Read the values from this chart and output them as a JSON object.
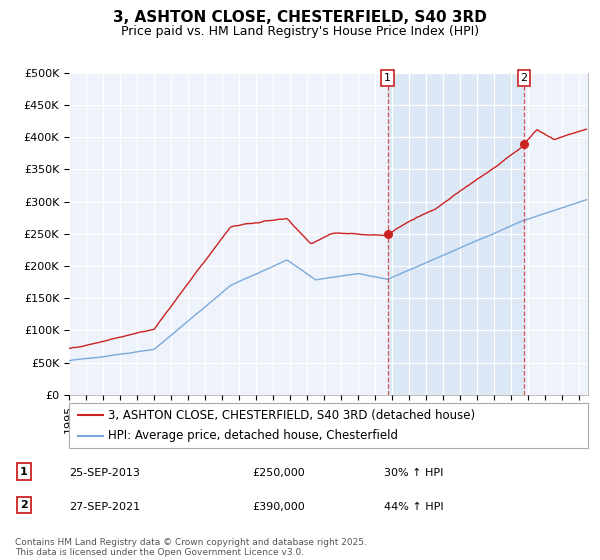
{
  "title": "3, ASHTON CLOSE, CHESTERFIELD, S40 3RD",
  "subtitle": "Price paid vs. HM Land Registry's House Price Index (HPI)",
  "ylim": [
    0,
    500000
  ],
  "yticks": [
    0,
    50000,
    100000,
    150000,
    200000,
    250000,
    300000,
    350000,
    400000,
    450000,
    500000
  ],
  "ytick_labels": [
    "£0",
    "£50K",
    "£100K",
    "£150K",
    "£200K",
    "£250K",
    "£300K",
    "£350K",
    "£400K",
    "£450K",
    "£500K"
  ],
  "xlim_start": 1995.0,
  "xlim_end": 2025.5,
  "background_color": "#ffffff",
  "plot_bg_color": "#eef2fa",
  "grid_color": "#ffffff",
  "red_color": "#cc2222",
  "blue_color": "#7aaadd",
  "span_color": "#dce8f5",
  "marker1_x": 2013.73,
  "marker1_y": 250000,
  "marker2_x": 2021.74,
  "marker2_y": 390000,
  "legend_line1": "3, ASHTON CLOSE, CHESTERFIELD, S40 3RD (detached house)",
  "legend_line2": "HPI: Average price, detached house, Chesterfield",
  "marker1_date": "25-SEP-2013",
  "marker1_price": "£250,000",
  "marker1_hpi": "30% ↑ HPI",
  "marker2_date": "27-SEP-2021",
  "marker2_price": "£390,000",
  "marker2_hpi": "44% ↑ HPI",
  "footer": "Contains HM Land Registry data © Crown copyright and database right 2025.\nThis data is licensed under the Open Government Licence v3.0.",
  "title_fontsize": 11,
  "subtitle_fontsize": 9,
  "tick_fontsize": 8,
  "legend_fontsize": 8.5,
  "footer_fontsize": 6.5
}
